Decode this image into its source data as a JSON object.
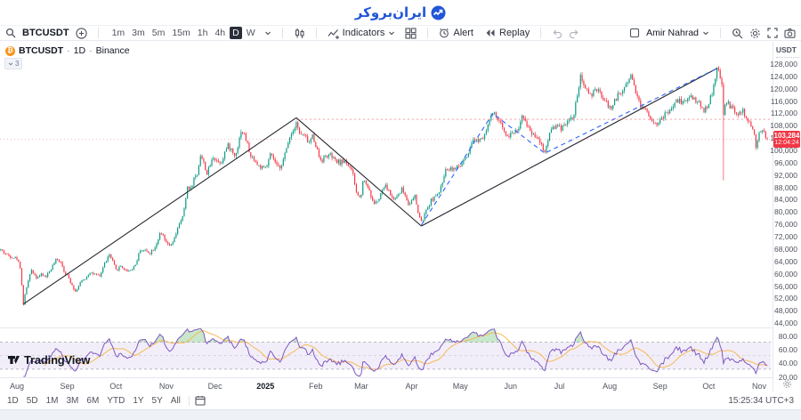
{
  "header": {
    "logo_text": "ایران‌بروکر",
    "logo_color": "#2156d6"
  },
  "toolbar": {
    "symbol": "BTCUSDT",
    "timeframes": [
      "1m",
      "3m",
      "5m",
      "15m",
      "1h",
      "4h",
      "D",
      "W"
    ],
    "active_timeframe": "D",
    "indicators_label": "Indicators",
    "alert_label": "Alert",
    "replay_label": "Replay",
    "user_name": "Amir Nahrad"
  },
  "chart": {
    "legend": {
      "symbol": "BTCUSDT",
      "separator": "·",
      "interval": "1D",
      "exchange": "Binance",
      "collapsed_count": "3"
    },
    "price_axis": {
      "currency_label": "USDT",
      "labels": [
        "128,000",
        "124,000",
        "120,000",
        "116,000",
        "112,000",
        "108,000",
        "104,000",
        "100,000",
        "96,000",
        "92,000",
        "88,000",
        "84,000",
        "80,000",
        "76,000",
        "72,000",
        "68,000",
        "64,000",
        "60,000",
        "56,000",
        "52,000",
        "48,000",
        "44,000"
      ],
      "current_price": "103,284",
      "countdown": "12:04:24"
    },
    "rsi_axis": {
      "labels": [
        "80.00",
        "60.00",
        "40.00",
        "20.00"
      ]
    },
    "time_axis": {
      "labels": [
        {
          "text": "Aug",
          "day": 0
        },
        {
          "text": "Sep",
          "day": 31
        },
        {
          "text": "Oct",
          "day": 61
        },
        {
          "text": "Nov",
          "day": 92
        },
        {
          "text": "Dec",
          "day": 122
        },
        {
          "text": "2025",
          "day": 153,
          "bold": true
        },
        {
          "text": "Feb",
          "day": 184
        },
        {
          "text": "Mar",
          "day": 212
        },
        {
          "text": "Apr",
          "day": 243
        },
        {
          "text": "May",
          "day": 273
        },
        {
          "text": "Jun",
          "day": 304
        },
        {
          "text": "Jul",
          "day": 334
        },
        {
          "text": "Aug",
          "day": 365
        },
        {
          "text": "Sep",
          "day": 396
        },
        {
          "text": "Oct",
          "day": 426
        },
        {
          "text": "Nov",
          "day": 457
        }
      ]
    },
    "watermark": "TradingView"
  },
  "chart_data": {
    "type": "candlestick",
    "symbol": "BTCUSDT",
    "interval": "1D",
    "exchange": "Binance",
    "x_unit": "days since 2024-08-01",
    "y_range": [
      44000,
      128000
    ],
    "y_tick_step": 4000,
    "current_price": 103284,
    "price_anchors": [
      [
        -10,
        67500
      ],
      [
        -6,
        65800
      ],
      [
        0,
        64600
      ],
      [
        2,
        62000
      ],
      [
        4,
        49900
      ],
      [
        6,
        55500
      ],
      [
        9,
        61000
      ],
      [
        12,
        58600
      ],
      [
        15,
        59300
      ],
      [
        18,
        58900
      ],
      [
        21,
        61300
      ],
      [
        24,
        64100
      ],
      [
        27,
        63800
      ],
      [
        29,
        60600
      ],
      [
        31,
        59100
      ],
      [
        34,
        56200
      ],
      [
        36,
        53900
      ],
      [
        39,
        56800
      ],
      [
        42,
        58100
      ],
      [
        45,
        60300
      ],
      [
        48,
        59400
      ],
      [
        51,
        58800
      ],
      [
        54,
        63200
      ],
      [
        57,
        65800
      ],
      [
        59,
        63600
      ],
      [
        61,
        60900
      ],
      [
        64,
        62200
      ],
      [
        67,
        60800
      ],
      [
        70,
        60900
      ],
      [
        73,
        62700
      ],
      [
        76,
        67600
      ],
      [
        79,
        67200
      ],
      [
        82,
        66600
      ],
      [
        85,
        68400
      ],
      [
        88,
        72400
      ],
      [
        90,
        72000
      ],
      [
        92,
        69400
      ],
      [
        95,
        68800
      ],
      [
        97,
        71000
      ],
      [
        99,
        74800
      ],
      [
        101,
        76500
      ],
      [
        103,
        80400
      ],
      [
        105,
        88000
      ],
      [
        107,
        87300
      ],
      [
        109,
        90600
      ],
      [
        111,
        92000
      ],
      [
        113,
        98300
      ],
      [
        115,
        95600
      ],
      [
        117,
        92100
      ],
      [
        119,
        95000
      ],
      [
        121,
        97700
      ],
      [
        124,
        95900
      ],
      [
        126,
        96100
      ],
      [
        128,
        99200
      ],
      [
        130,
        101200
      ],
      [
        132,
        99900
      ],
      [
        134,
        97900
      ],
      [
        136,
        101100
      ],
      [
        138,
        106200
      ],
      [
        140,
        104800
      ],
      [
        142,
        101600
      ],
      [
        144,
        97400
      ],
      [
        146,
        97100
      ],
      [
        148,
        95000
      ],
      [
        150,
        94300
      ],
      [
        152,
        93600
      ],
      [
        154,
        94700
      ],
      [
        156,
        98200
      ],
      [
        158,
        96900
      ],
      [
        160,
        94500
      ],
      [
        162,
        94400
      ],
      [
        164,
        96600
      ],
      [
        166,
        100200
      ],
      [
        168,
        104500
      ],
      [
        170,
        106100
      ],
      [
        172,
        109300
      ],
      [
        174,
        105000
      ],
      [
        176,
        104800
      ],
      [
        178,
        103700
      ],
      [
        180,
        102100
      ],
      [
        182,
        104500
      ],
      [
        184,
        101500
      ],
      [
        186,
        97700
      ],
      [
        188,
        96600
      ],
      [
        190,
        97900
      ],
      [
        193,
        98100
      ],
      [
        196,
        96200
      ],
      [
        199,
        95800
      ],
      [
        202,
        96300
      ],
      [
        205,
        94300
      ],
      [
        207,
        91500
      ],
      [
        209,
        86100
      ],
      [
        211,
        84300
      ],
      [
        212,
        86000
      ],
      [
        213,
        90100
      ],
      [
        215,
        89200
      ],
      [
        217,
        86800
      ],
      [
        219,
        83000
      ],
      [
        221,
        82800
      ],
      [
        223,
        83900
      ],
      [
        225,
        86900
      ],
      [
        227,
        88000
      ],
      [
        229,
        86500
      ],
      [
        231,
        84300
      ],
      [
        233,
        84100
      ],
      [
        235,
        85800
      ],
      [
        237,
        87300
      ],
      [
        239,
        85200
      ],
      [
        241,
        82500
      ],
      [
        243,
        83200
      ],
      [
        245,
        84800
      ],
      [
        247,
        79600
      ],
      [
        249,
        76300
      ],
      [
        251,
        78800
      ],
      [
        253,
        81200
      ],
      [
        255,
        83500
      ],
      [
        257,
        84600
      ],
      [
        259,
        85100
      ],
      [
        261,
        87500
      ],
      [
        263,
        92000
      ],
      [
        265,
        93900
      ],
      [
        267,
        94000
      ],
      [
        269,
        93800
      ],
      [
        271,
        94200
      ],
      [
        273,
        94600
      ],
      [
        275,
        96500
      ],
      [
        277,
        97100
      ],
      [
        279,
        99800
      ],
      [
        281,
        103300
      ],
      [
        283,
        102900
      ],
      [
        285,
        103500
      ],
      [
        287,
        104200
      ],
      [
        289,
        106800
      ],
      [
        291,
        109500
      ],
      [
        293,
        111600
      ],
      [
        295,
        110800
      ],
      [
        297,
        108900
      ],
      [
        299,
        107100
      ],
      [
        301,
        105600
      ],
      [
        303,
        104200
      ],
      [
        305,
        105900
      ],
      [
        307,
        105700
      ],
      [
        309,
        107200
      ],
      [
        311,
        110300
      ],
      [
        313,
        108900
      ],
      [
        315,
        107300
      ],
      [
        317,
        105200
      ],
      [
        319,
        104700
      ],
      [
        321,
        103900
      ],
      [
        323,
        101500
      ],
      [
        325,
        99000
      ],
      [
        326,
        101200
      ],
      [
        327,
        103400
      ],
      [
        329,
        107100
      ],
      [
        331,
        107500
      ],
      [
        333,
        107300
      ],
      [
        335,
        107000
      ],
      [
        337,
        108600
      ],
      [
        339,
        108900
      ],
      [
        341,
        110100
      ],
      [
        343,
        111000
      ],
      [
        345,
        117800
      ],
      [
        347,
        123200
      ],
      [
        349,
        120100
      ],
      [
        351,
        119900
      ],
      [
        353,
        117600
      ],
      [
        355,
        118300
      ],
      [
        357,
        119300
      ],
      [
        359,
        118100
      ],
      [
        361,
        116500
      ],
      [
        363,
        115100
      ],
      [
        365,
        113400
      ],
      [
        367,
        114600
      ],
      [
        369,
        116800
      ],
      [
        371,
        118200
      ],
      [
        373,
        119100
      ],
      [
        375,
        121300
      ],
      [
        378,
        124300
      ],
      [
        380,
        120800
      ],
      [
        382,
        117400
      ],
      [
        384,
        113900
      ],
      [
        386,
        113300
      ],
      [
        388,
        112800
      ],
      [
        390,
        110200
      ],
      [
        392,
        108900
      ],
      [
        394,
        108600
      ],
      [
        397,
        109800
      ],
      [
        399,
        111300
      ],
      [
        401,
        112400
      ],
      [
        403,
        113100
      ],
      [
        405,
        114800
      ],
      [
        407,
        116100
      ],
      [
        409,
        115600
      ],
      [
        411,
        115400
      ],
      [
        413,
        116600
      ],
      [
        415,
        117300
      ],
      [
        417,
        116400
      ],
      [
        419,
        115700
      ],
      [
        421,
        114100
      ],
      [
        423,
        112800
      ],
      [
        425,
        114100
      ],
      [
        427,
        116700
      ],
      [
        429,
        120100
      ],
      [
        431,
        126200
      ],
      [
        433,
        123500
      ],
      [
        434,
        121700
      ],
      [
        435,
        111500
      ],
      [
        436,
        113800
      ],
      [
        437,
        115200
      ],
      [
        439,
        114100
      ],
      [
        441,
        113200
      ],
      [
        443,
        110900
      ],
      [
        445,
        111700
      ],
      [
        447,
        112400
      ],
      [
        449,
        110100
      ],
      [
        451,
        108200
      ],
      [
        453,
        106900
      ],
      [
        455,
        101300
      ],
      [
        457,
        104800
      ],
      [
        459,
        106600
      ],
      [
        461,
        104200
      ],
      [
        462,
        103284
      ]
    ],
    "events": [
      {
        "day": 435,
        "type": "flash_crash_wick",
        "wick_low": 90000
      }
    ],
    "trend_lines": [
      {
        "style": "solid",
        "color": "#23262d",
        "points": [
          [
            4,
            49900
          ],
          [
            172,
            110300
          ]
        ]
      },
      {
        "style": "solid",
        "color": "#23262d",
        "points": [
          [
            172,
            110300
          ],
          [
            249,
            75200
          ]
        ]
      },
      {
        "style": "solid",
        "color": "#23262d",
        "points": [
          [
            249,
            75200
          ],
          [
            431,
            126300
          ]
        ]
      },
      {
        "style": "dashed",
        "color": "#2962ff",
        "points": [
          [
            249,
            75500
          ],
          [
            293,
            111700
          ],
          [
            325,
            98800
          ],
          [
            431,
            126300
          ]
        ]
      }
    ],
    "horizontal_rays": [
      {
        "from_day": 172,
        "price": 109800,
        "style": "dotted",
        "color": "#f23645"
      }
    ],
    "current_price_line": {
      "price": 103284,
      "style": "dotted",
      "color": "#f23645"
    },
    "indicator": {
      "name": "RSI",
      "period": 14,
      "ma_period": 14,
      "bands": [
        70,
        50,
        30
      ],
      "scale_labels": [
        80,
        60,
        40,
        20
      ],
      "line_color": "#7e57c2",
      "ma_color": "#f7b955",
      "band_fill": "rgba(126,87,194,0.10)",
      "overbought_fill": "rgba(76,175,80,0.30)"
    },
    "colors": {
      "up": "#089981",
      "down": "#f23645"
    }
  },
  "bottom_toolbar": {
    "ranges": [
      "1D",
      "5D",
      "1M",
      "3M",
      "6M",
      "YTD",
      "1Y",
      "5Y",
      "All"
    ],
    "clock": "15:25:34",
    "timezone": "UTC+3"
  }
}
